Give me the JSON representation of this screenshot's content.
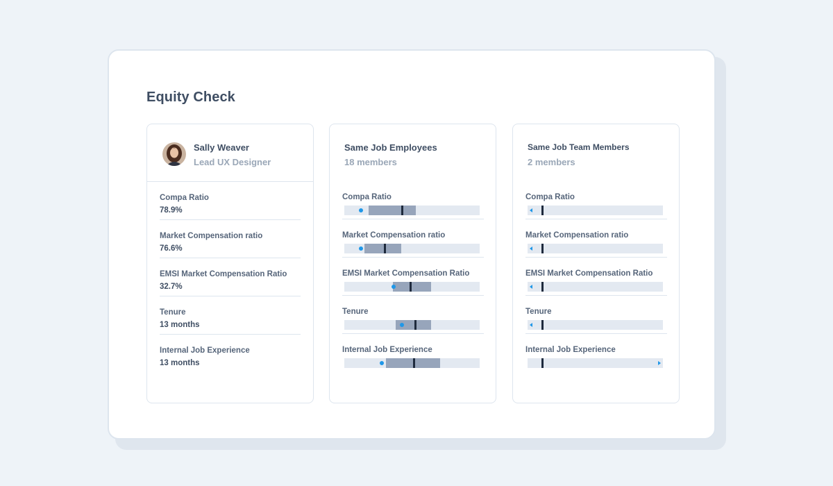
{
  "page_title": "Equity Check",
  "profile": {
    "name": "Sally Weaver",
    "role": "Lead UX Designer",
    "metrics": [
      {
        "label": "Compa Ratio",
        "value": "78.9%"
      },
      {
        "label": "Market Compensation ratio",
        "value": "76.6%"
      },
      {
        "label": "EMSI Market Compensation Ratio",
        "value": "32.7%"
      },
      {
        "label": "Tenure",
        "value": "13 months"
      },
      {
        "label": "Internal Job Experience",
        "value": "13 months"
      }
    ]
  },
  "same_job": {
    "title": "Same Job Employees",
    "count": "18 members",
    "metrics": [
      {
        "label": "Compa Ratio",
        "range": [
          0.18,
          0.53
        ],
        "median": 0.42,
        "employee": 0.11
      },
      {
        "label": "Market Compensation ratio",
        "range": [
          0.15,
          0.42
        ],
        "median": 0.29,
        "employee": 0.11
      },
      {
        "label": "EMSI Market Compensation Ratio",
        "range": [
          0.36,
          0.64
        ],
        "median": 0.48,
        "employee": 0.35
      },
      {
        "label": "Tenure",
        "range": [
          0.38,
          0.64
        ],
        "median": 0.52,
        "employee": 0.41
      },
      {
        "label": "Internal Job Experience",
        "range": [
          0.31,
          0.71
        ],
        "median": 0.51,
        "employee": 0.26
      }
    ]
  },
  "same_team": {
    "title": "Same Job Team Members",
    "count": "2 members",
    "metrics": [
      {
        "label": "Compa Ratio",
        "median": 0.1,
        "employee_direction": "left"
      },
      {
        "label": "Market Compensation ratio",
        "median": 0.1,
        "employee_direction": "left"
      },
      {
        "label": "EMSI Market Compensation Ratio",
        "median": 0.1,
        "employee_direction": "left"
      },
      {
        "label": "Tenure",
        "median": 0.1,
        "employee_direction": "left"
      },
      {
        "label": "Internal Job Experience",
        "median": 0.1,
        "employee_direction": "right"
      }
    ]
  },
  "colors": {
    "range": "#97a5bb",
    "track": "#e3e9f1",
    "median": "#1e2a3d",
    "employee_marker": "#1f97e8"
  },
  "icons": {
    "avatar": "avatar-photo",
    "out_of_range_left": "triangle-left-icon",
    "out_of_range_right": "triangle-right-icon"
  }
}
